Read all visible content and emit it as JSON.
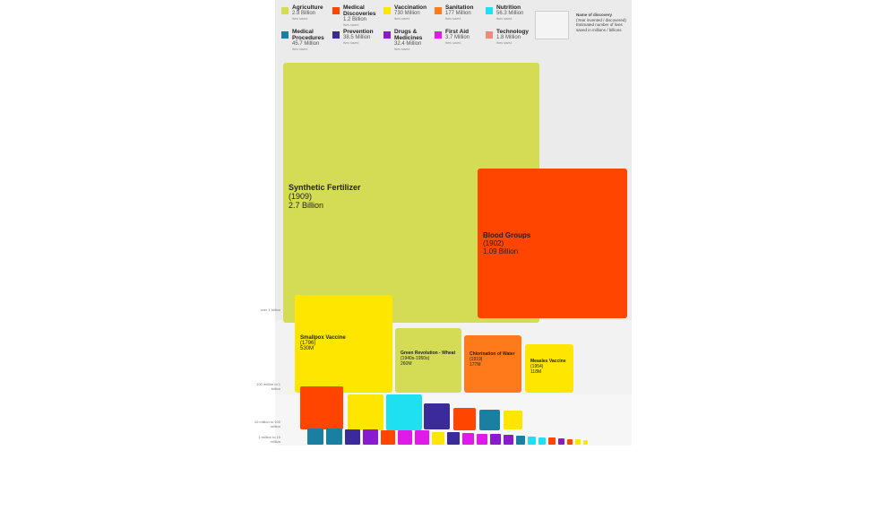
{
  "legend": {
    "items": [
      {
        "name": "Agriculture",
        "total": "2.9 Billion",
        "color": "#d4dc56"
      },
      {
        "name": "Medical Discoveries",
        "total": "1.2 Billion",
        "color": "#ff4500"
      },
      {
        "name": "Vaccination",
        "total": "730 Million",
        "color": "#ffe600"
      },
      {
        "name": "Sanitation",
        "total": "177 Million",
        "color": "#ff7a1a"
      },
      {
        "name": "Nutrition",
        "total": "56.3 Million",
        "color": "#1ee0f0"
      },
      {
        "name": "Medical Procedures",
        "total": "45.7 Million",
        "color": "#1a7fa0"
      },
      {
        "name": "Prevention",
        "total": "38.5 Million",
        "color": "#3a2a9a"
      },
      {
        "name": "Drugs & Medicines",
        "total": "32.4 Million",
        "color": "#8a1ad0"
      },
      {
        "name": "First Aid",
        "total": "3.7 Million",
        "color": "#e01ae8"
      },
      {
        "name": "Technology",
        "total": "1.8 Million",
        "color": "#f08a80"
      }
    ],
    "unit": "lives saved",
    "key": [
      "Name of discovery",
      "(Year invented / discovered)",
      "Estimated number of lives saved in millions / billions"
    ]
  },
  "bands": [
    "over 1 billion",
    "100 million to 1 billion",
    "10 million to 100 million",
    "1 million to 10 million"
  ],
  "blocks": [
    {
      "name": "Synthetic Fertilizer",
      "year": "(1909)",
      "lives": "2.7 Billion"
    },
    {
      "name": "Blood Groups",
      "year": "(1902)",
      "lives": "1.09 Billion"
    },
    {
      "name": "Smallpox Vaccine",
      "year": "(1796)",
      "lives": "530M"
    },
    {
      "name": "Green Revolution - Wheat",
      "year": "(1940s-1950s)",
      "lives": "260M"
    },
    {
      "name": "Chlorination of Water",
      "year": "(1919)",
      "lives": "177M"
    },
    {
      "name": "Measles Vaccine",
      "year": "(1954)",
      "lives": "118M"
    }
  ]
}
